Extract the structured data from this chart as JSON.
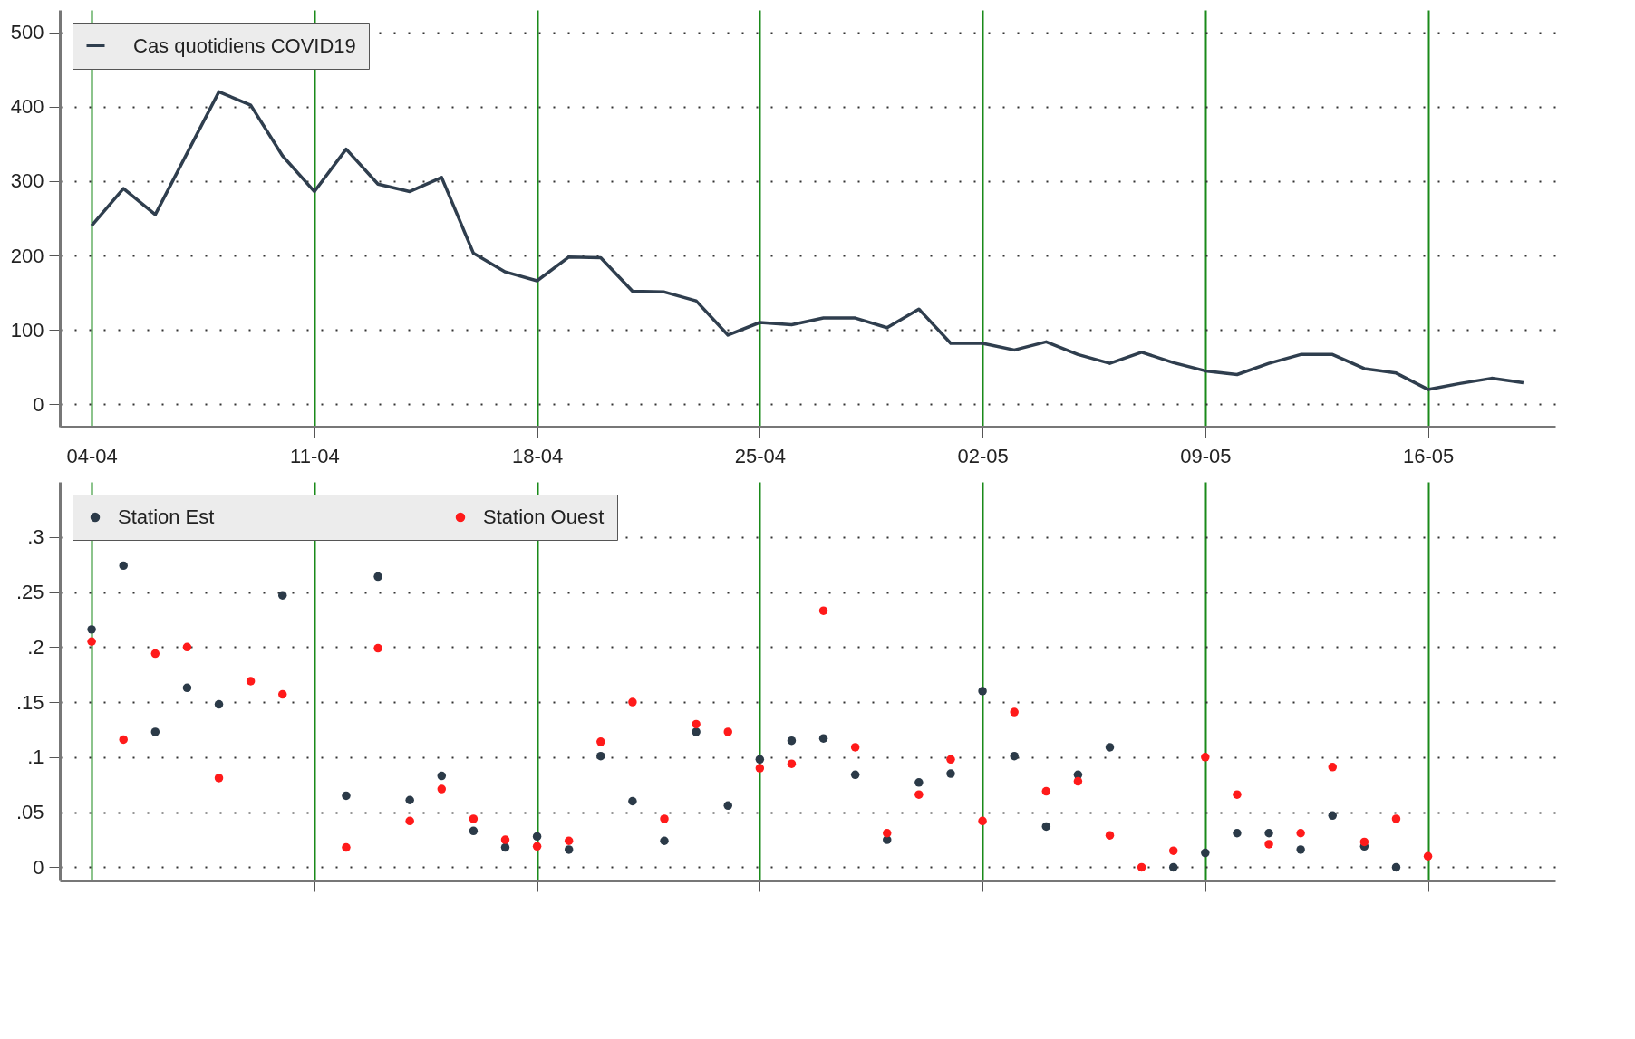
{
  "chart_data": [
    {
      "type": "line",
      "x": [
        "--04-04",
        "--04-05",
        "--04-06",
        "--04-07",
        "--04-08",
        "--04-09",
        "--04-10",
        "--04-11",
        "--04-12",
        "--04-13",
        "--04-14",
        "--04-15",
        "--04-16",
        "--04-17",
        "--04-18",
        "--04-19",
        "--04-20",
        "--04-21",
        "--04-22",
        "--04-23",
        "--04-24",
        "--04-25",
        "--04-26",
        "--04-27",
        "--04-28",
        "--04-29",
        "--04-30",
        "--05-01",
        "--05-02",
        "--05-03",
        "--05-04",
        "--05-05",
        "--05-06",
        "--05-07",
        "--05-08",
        "--05-09",
        "--05-10",
        "--05-11",
        "--05-12",
        "--05-13",
        "--05-14",
        "--05-15",
        "--05-16",
        "--05-17",
        "--05-18",
        "--05-19"
      ],
      "series": [
        {
          "name": "Cas quotidiens COVID19",
          "color": "#2f3e4e",
          "values": [
            240,
            290,
            255,
            null,
            420,
            402,
            334,
            286,
            343,
            296,
            286,
            305,
            203,
            178,
            166,
            198,
            197,
            152,
            151,
            139,
            93,
            110,
            107,
            116,
            116,
            103,
            128,
            82,
            82,
            73,
            84,
            67,
            55,
            70,
            56,
            45,
            40,
            55,
            67,
            67,
            48,
            42,
            20,
            28,
            35,
            29
          ]
        }
      ],
      "xlim": [
        "--04-03",
        "--05-20"
      ],
      "ylim": [
        -30,
        530
      ],
      "xticks": [
        {
          "value": "--04-04",
          "label": "04-04"
        },
        {
          "value": "--04-11",
          "label": "11-04"
        },
        {
          "value": "--04-18",
          "label": "18-04"
        },
        {
          "value": "--04-25",
          "label": "25-04"
        },
        {
          "value": "--05-02",
          "label": "02-05"
        },
        {
          "value": "--05-09",
          "label": "09-05"
        },
        {
          "value": "--05-16",
          "label": "16-05"
        }
      ],
      "yticks": [
        0,
        100,
        200,
        300,
        400,
        500
      ],
      "grid": true,
      "legend": "top left",
      "line_style": "solid"
    },
    {
      "type": "scatter",
      "x": [
        "--04-04",
        "--04-05",
        "--04-06",
        "--04-07",
        "--04-08",
        "--04-09",
        "--04-10",
        "--04-11",
        "--04-12",
        "--04-13",
        "--04-14",
        "--04-15",
        "--04-16",
        "--04-17",
        "--04-18",
        "--04-19",
        "--04-20",
        "--04-21",
        "--04-22",
        "--04-23",
        "--04-24",
        "--04-25",
        "--04-26",
        "--04-27",
        "--04-28",
        "--04-29",
        "--04-30",
        "--05-01",
        "--05-02",
        "--05-03",
        "--05-04",
        "--05-05",
        "--05-06",
        "--05-07",
        "--05-08",
        "--05-09",
        "--05-10",
        "--05-11",
        "--05-12",
        "--05-13",
        "--05-14",
        "--05-15",
        "--05-16"
      ],
      "series": [
        {
          "name": "Station Est",
          "color": "#2b3a48",
          "values": [
            0.216,
            0.274,
            0.123,
            0.163,
            0.148,
            null,
            0.247,
            null,
            0.065,
            0.264,
            0.061,
            0.083,
            0.033,
            0.018,
            0.028,
            0.016,
            0.101,
            0.06,
            0.024,
            0.123,
            0.056,
            0.098,
            0.115,
            0.117,
            0.084,
            0.025,
            0.077,
            0.085,
            0.16,
            0.101,
            0.037,
            0.084,
            0.109,
            null,
            0,
            0.013,
            0.031,
            0.031,
            0.016,
            0.047,
            0.019,
            0,
            null
          ]
        },
        {
          "name": "Station Ouest",
          "color": "#ff1a1a",
          "values": [
            0.205,
            0.116,
            0.194,
            0.2,
            0.081,
            0.169,
            0.157,
            null,
            0.018,
            0.199,
            0.042,
            0.071,
            0.044,
            0.025,
            0.019,
            0.024,
            0.114,
            0.15,
            0.044,
            0.13,
            0.123,
            0.09,
            0.094,
            0.233,
            0.109,
            0.031,
            0.066,
            0.098,
            0.042,
            0.141,
            0.069,
            0.078,
            0.029,
            0,
            0.015,
            0.1,
            0.066,
            0.021,
            0.031,
            0.091,
            0.023,
            0.044,
            0.01
          ]
        }
      ],
      "xlim": [
        "--04-03",
        "--05-20"
      ],
      "ylim": [
        -0.012,
        0.35
      ],
      "xticks": [
        {
          "value": "--04-04",
          "label": null
        },
        {
          "value": "--04-11",
          "label": null
        },
        {
          "value": "--04-18",
          "label": null
        },
        {
          "value": "--04-25",
          "label": null
        },
        {
          "value": "--05-02",
          "label": null
        },
        {
          "value": "--05-09",
          "label": null
        },
        {
          "value": "--05-16",
          "label": null
        }
      ],
      "yticks": [
        0,
        {
          "value": 0.05,
          "label": ".05"
        },
        {
          "value": 0.1,
          "label": ".1"
        },
        {
          "value": 0.15,
          "label": ".15"
        },
        {
          "value": 0.2,
          "label": ".2"
        },
        {
          "value": 0.25,
          "label": ".25"
        },
        {
          "value": 0.3,
          "label": ".3"
        }
      ],
      "tick_labels": "y",
      "grid": true,
      "legend": "top left",
      "marker": "circle"
    }
  ]
}
